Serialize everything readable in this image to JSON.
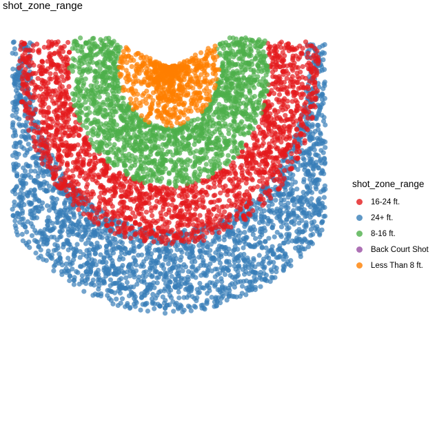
{
  "chart_data": {
    "type": "scatter",
    "title": "shot_zone_range",
    "xlabel": "",
    "ylabel": "",
    "grid": false,
    "axes_shown": false,
    "xlim": [
      -250,
      250
    ],
    "ylim": [
      -50,
      470
    ],
    "y_axis_inverted": true,
    "legend": {
      "title": "shot_zone_range",
      "position": "right",
      "entries": [
        "16-24 ft.",
        "24+ ft.",
        "8-16 ft.",
        "Back Court Shot",
        "Less Than 8 ft."
      ]
    },
    "series": [
      {
        "name": "16-24 ft.",
        "color": "#E41A1C",
        "approx_points": 1900,
        "distance_range_ft": [
          16,
          24
        ],
        "approx_y_range": [
          -35,
          300
        ]
      },
      {
        "name": "24+ ft.",
        "color": "#377EB8",
        "approx_points": 2400,
        "distance_range_ft": [
          22,
          33
        ],
        "approx_y_range": [
          -35,
          460
        ]
      },
      {
        "name": "8-16 ft.",
        "color": "#4DAF4A",
        "approx_points": 1600,
        "distance_range_ft": [
          8,
          16
        ],
        "approx_y_range": [
          -40,
          160
        ]
      },
      {
        "name": "Back Court Shot",
        "color": "#984EA3",
        "approx_points": 0
      },
      {
        "name": "Less Than 8 ft.",
        "color": "#FF7F00",
        "approx_points": 700,
        "distance_range_ft": [
          0,
          8
        ],
        "approx_y_range": [
          -30,
          80
        ]
      }
    ]
  },
  "colors": {
    "16-24 ft.": "#E41A1C",
    "24+ ft.": "#377EB8",
    "8-16 ft.": "#4DAF4A",
    "Back Court Shot": "#984EA3",
    "Less Than 8 ft.": "#FF7F00"
  }
}
